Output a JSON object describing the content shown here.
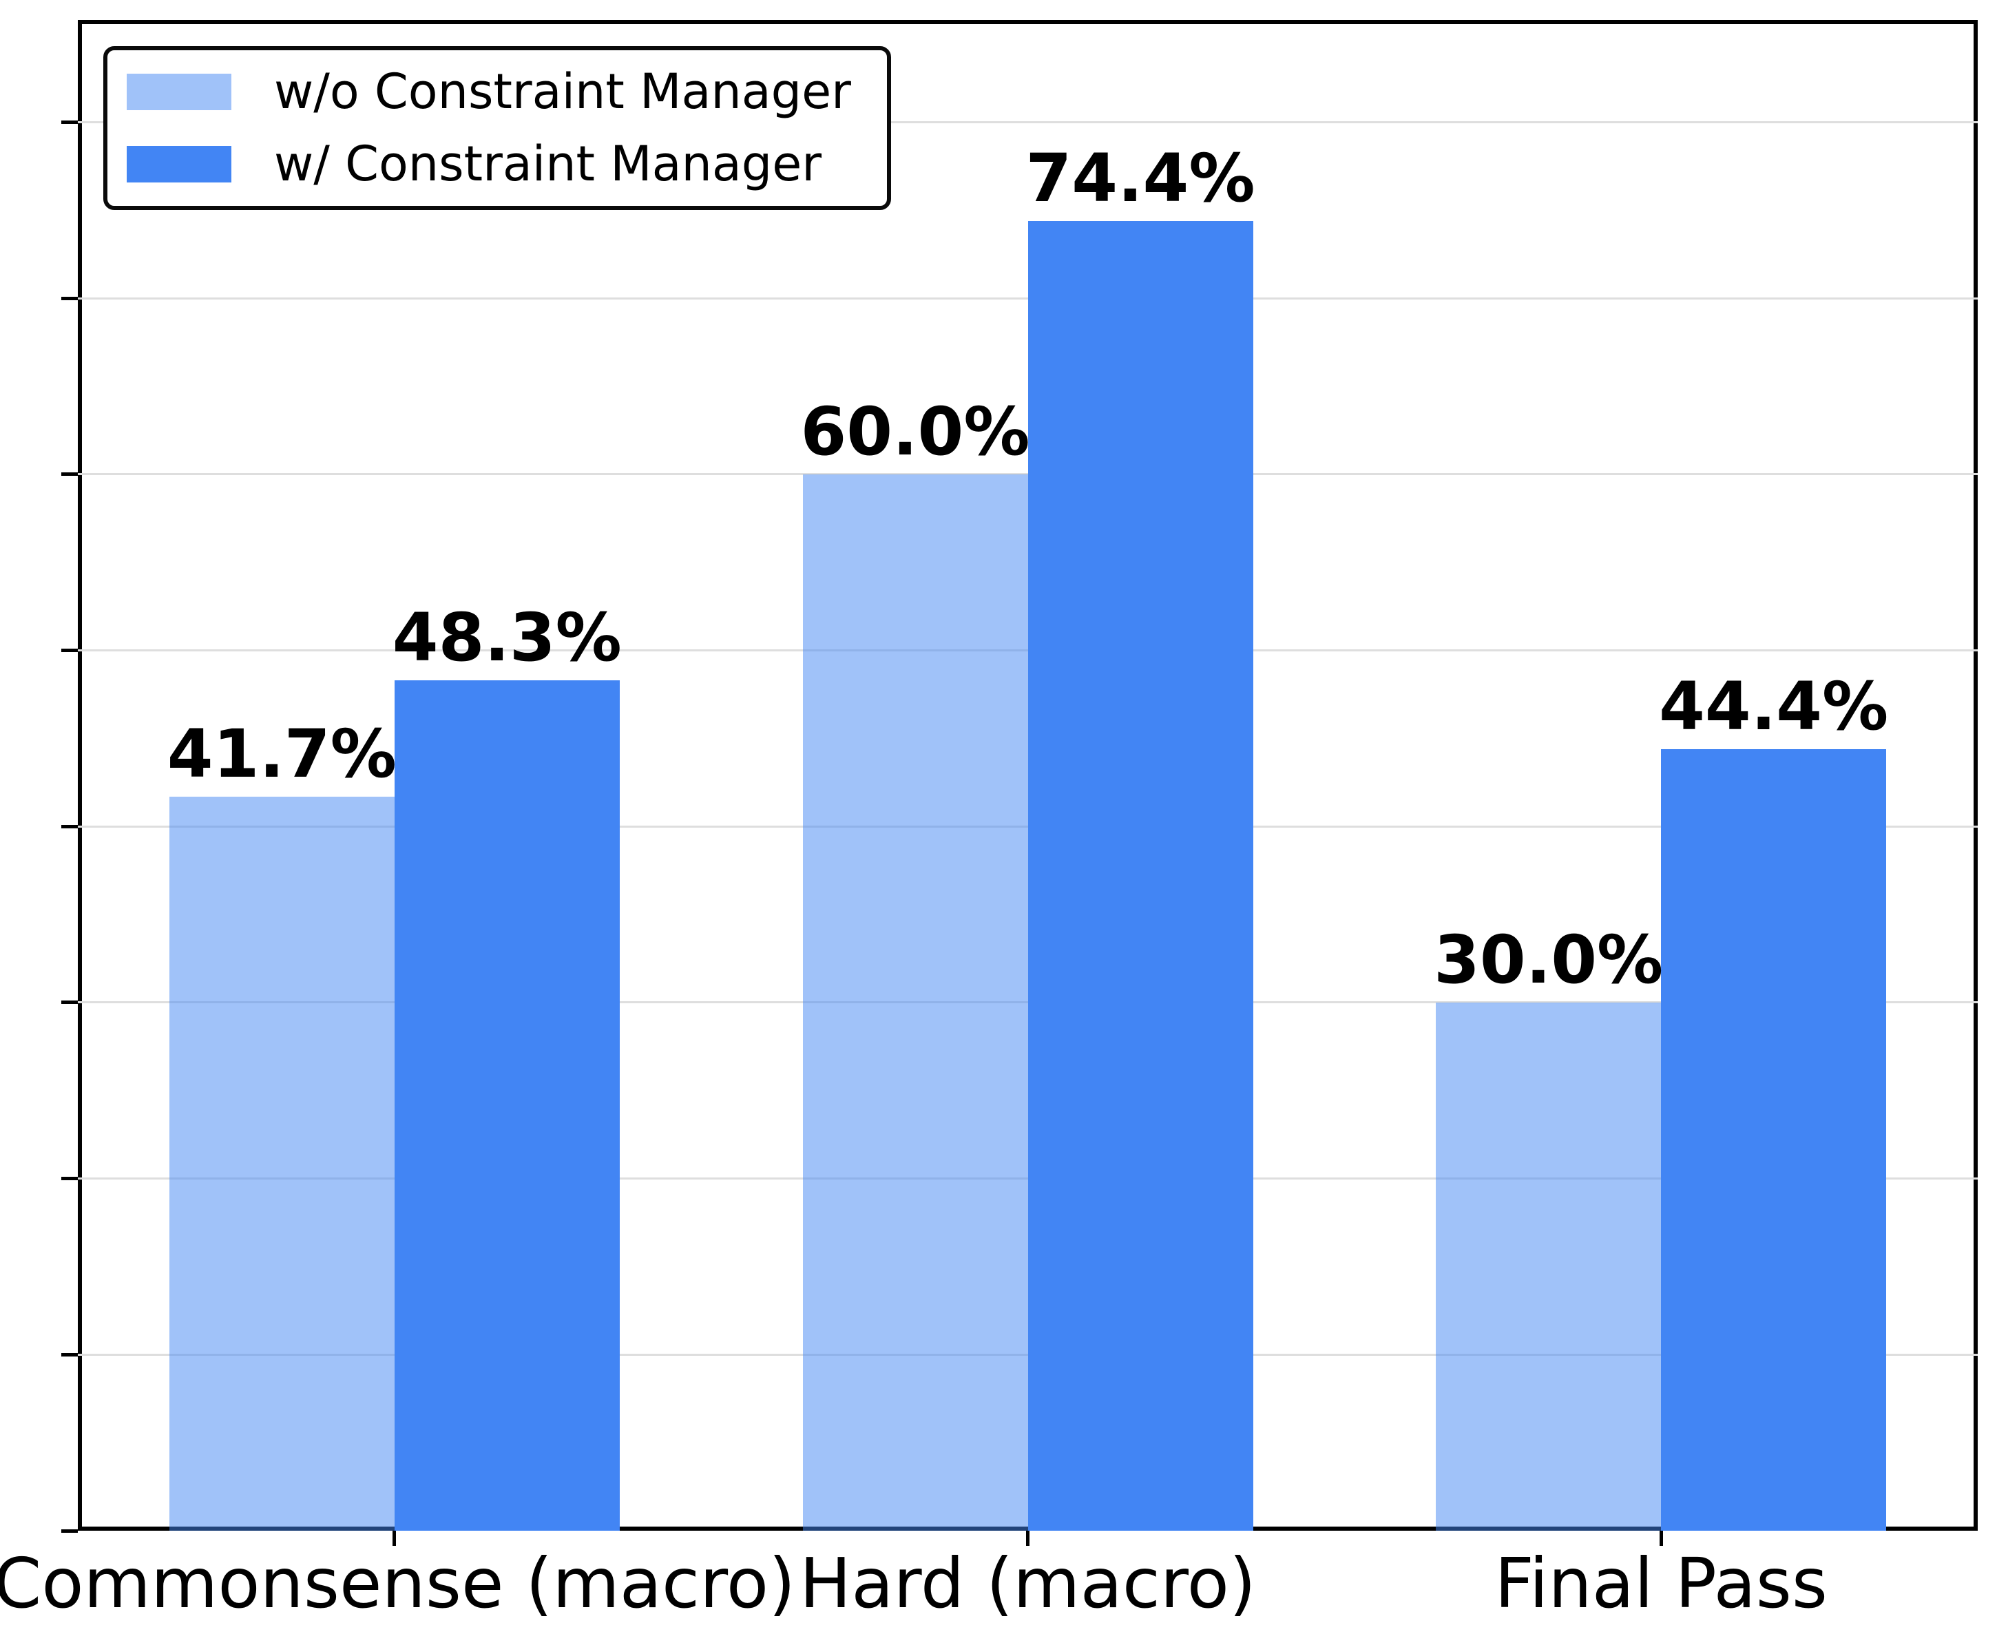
{
  "chart_data": {
    "type": "bar",
    "title": "",
    "xlabel": "",
    "ylabel": "",
    "categories": [
      "Commonsense (macro)",
      "Hard (macro)",
      "Final Pass"
    ],
    "series": [
      {
        "name": "w/o Constraint Manager",
        "values": [
          41.7,
          60.0,
          30.0
        ],
        "labels": [
          "41.7%",
          "60.0%",
          "30.0%"
        ],
        "color": "rgba(66,133,244,0.5)",
        "color_hex_on_white": "#a1c2fa"
      },
      {
        "name": "w/ Constraint Manager",
        "values": [
          48.3,
          74.4,
          44.4
        ],
        "labels": [
          "48.3%",
          "74.4%",
          "44.4%"
        ],
        "color": "#4285f4",
        "color_hex_on_white": "#4285f4"
      }
    ],
    "ylim": [
      0,
      85.8
    ],
    "grid": {
      "show": true,
      "interval": 10,
      "color": "#dedede"
    },
    "y_tick_interval": 10,
    "y_tick_labels_visible": false,
    "legend": {
      "position": "upper left",
      "border_color": "#0a0a0a"
    },
    "axis_color": "#000000",
    "value_label_color": "#000000"
  }
}
